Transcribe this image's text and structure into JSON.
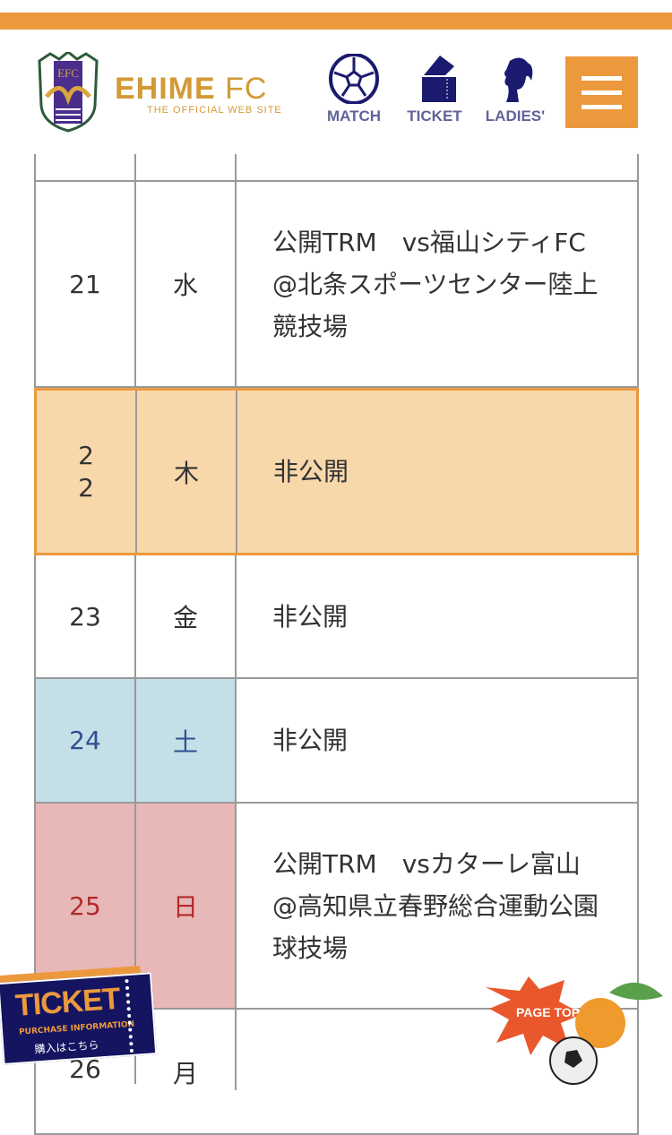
{
  "header": {
    "brand_name": "EHIME",
    "brand_suffix": "FC",
    "brand_tagline": "THE OFFICIAL WEB SITE",
    "nav": [
      {
        "label": "MATCH",
        "icon": "soccer-ball-icon"
      },
      {
        "label": "TICKET",
        "icon": "ticket-icon"
      },
      {
        "label": "LADIES'",
        "icon": "woman-silhouette-icon"
      }
    ],
    "menu_icon": "hamburger-icon",
    "colors": {
      "accent": "#ec993e",
      "brand_gold": "#d29a35",
      "nav_navy": "#1a1a6e"
    }
  },
  "schedule": [
    {
      "day": "21",
      "weekday": "水",
      "event": "公開TRM　vs福山シティFC　@北条スポーツセンター陸上競技場"
    },
    {
      "day": "22",
      "weekday": "木",
      "event": "非公開",
      "highlight": true
    },
    {
      "day": "23",
      "weekday": "金",
      "event": "非公開"
    },
    {
      "day": "24",
      "weekday": "土",
      "event": "非公開",
      "type": "saturday"
    },
    {
      "day": "25",
      "weekday": "日",
      "event": "公開TRM　vsカターレ富山　@高知県立春野総合運動公園 球技場",
      "type": "sunday"
    },
    {
      "day": "26",
      "weekday": "月",
      "event": ""
    }
  ],
  "ticket_banner": {
    "title": "TICKET",
    "subtitle": "PURCHASE INFORMATION",
    "jp": "購入はこちら"
  },
  "page_top": {
    "label": "PAGE TOP"
  }
}
